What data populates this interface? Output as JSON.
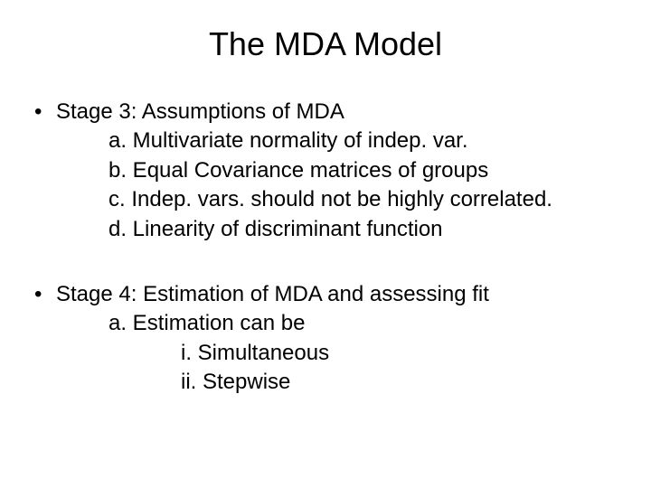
{
  "title": "The MDA Model",
  "stage3": {
    "heading": "Stage 3: Assumptions of MDA",
    "items": {
      "a": "a. Multivariate normality of indep. var.",
      "b": "b. Equal Covariance matrices of groups",
      "c": "c. Indep. vars. should not be highly correlated.",
      "d": "d. Linearity of discriminant function"
    }
  },
  "stage4": {
    "heading": "Stage 4: Estimation of MDA and assessing fit",
    "items": {
      "a": "a. Estimation can be"
    },
    "subitems": {
      "i": "i. Simultaneous",
      "ii": "ii. Stepwise"
    }
  },
  "style": {
    "background_color": "#ffffff",
    "text_color": "#000000",
    "title_fontsize": 36,
    "body_fontsize": 24,
    "font_family": "Arial"
  }
}
